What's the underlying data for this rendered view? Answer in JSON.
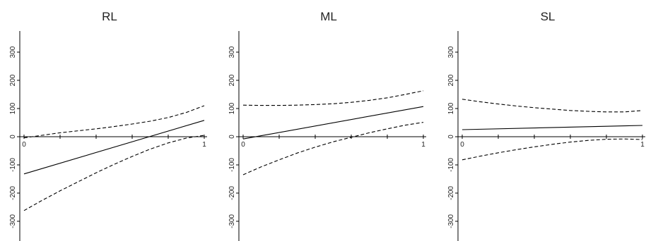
{
  "chart_data": [
    {
      "type": "line",
      "title": "RL",
      "xlim": [
        0,
        1
      ],
      "ylim": [
        -350,
        350
      ],
      "x_ticks": [
        0,
        0.2,
        0.4,
        0.6,
        0.8,
        1
      ],
      "x_tick_labels": [
        "0",
        "",
        "",
        "",
        "",
        "1"
      ],
      "y_ticks": [
        300,
        200,
        100,
        0,
        -100,
        -200,
        -300
      ],
      "y_tick_labels": [
        "300",
        "200",
        "100",
        "0",
        "-100",
        "-200",
        "-300"
      ],
      "grid": false,
      "series": [
        {
          "style": "solid",
          "x": [
            0,
            1
          ],
          "y": [
            -132,
            58
          ]
        },
        {
          "style": "dashed",
          "x": [
            0,
            0.1,
            0.2,
            0.3,
            0.4,
            0.5,
            0.6,
            0.7,
            0.8,
            0.9,
            1.0
          ],
          "y": [
            -4,
            5,
            14,
            21,
            28,
            36,
            45,
            55,
            68,
            86,
            110
          ]
        },
        {
          "style": "dashed",
          "x": [
            0,
            0.1,
            0.2,
            0.3,
            0.4,
            0.5,
            0.6,
            0.7,
            0.8,
            0.9,
            1.0
          ],
          "y": [
            -262,
            -226,
            -192,
            -160,
            -128,
            -98,
            -70,
            -44,
            -22,
            -5,
            5
          ]
        }
      ]
    },
    {
      "type": "line",
      "title": "ML",
      "xlim": [
        0,
        1
      ],
      "ylim": [
        -350,
        350
      ],
      "x_ticks": [
        0,
        0.2,
        0.4,
        0.6,
        0.8,
        1
      ],
      "x_tick_labels": [
        "0",
        "",
        "",
        "",
        "",
        "1"
      ],
      "y_ticks": [
        300,
        200,
        100,
        0,
        -100,
        -200,
        -300
      ],
      "y_tick_labels": [
        "300",
        "200",
        "100",
        "0",
        "-100",
        "-200",
        "-300"
      ],
      "grid": false,
      "series": [
        {
          "style": "solid",
          "x": [
            0,
            1
          ],
          "y": [
            -8,
            107
          ]
        },
        {
          "style": "dashed",
          "x": [
            0,
            0.1,
            0.2,
            0.3,
            0.4,
            0.5,
            0.6,
            0.7,
            0.8,
            0.9,
            1.0
          ],
          "y": [
            112,
            111,
            111,
            112,
            114,
            117,
            122,
            129,
            138,
            150,
            163
          ]
        },
        {
          "style": "dashed",
          "x": [
            0,
            0.1,
            0.2,
            0.3,
            0.4,
            0.5,
            0.6,
            0.7,
            0.8,
            0.9,
            1.0
          ],
          "y": [
            -135,
            -107,
            -82,
            -58,
            -37,
            -18,
            -2,
            14,
            28,
            41,
            51
          ]
        }
      ]
    },
    {
      "type": "line",
      "title": "SL",
      "xlim": [
        0,
        1
      ],
      "ylim": [
        -350,
        350
      ],
      "x_ticks": [
        0,
        0.2,
        0.4,
        0.6,
        0.8,
        1
      ],
      "x_tick_labels": [
        "0",
        "",
        "",
        "",
        "",
        "1"
      ],
      "y_ticks": [
        300,
        200,
        100,
        0,
        -100,
        -200,
        -300
      ],
      "y_tick_labels": [
        "300",
        "200",
        "100",
        "0",
        "-100",
        "-200",
        "-300"
      ],
      "grid": false,
      "series": [
        {
          "style": "solid",
          "x": [
            0,
            1
          ],
          "y": [
            25,
            40
          ]
        },
        {
          "style": "dashed",
          "x": [
            0,
            0.1,
            0.2,
            0.3,
            0.4,
            0.5,
            0.6,
            0.7,
            0.8,
            0.9,
            1.0
          ],
          "y": [
            133,
            124,
            116,
            109,
            103,
            98,
            93,
            90,
            88,
            88,
            93
          ]
        },
        {
          "style": "dashed",
          "x": [
            0,
            0.1,
            0.2,
            0.3,
            0.4,
            0.5,
            0.6,
            0.7,
            0.8,
            0.9,
            1.0
          ],
          "y": [
            -82,
            -69,
            -57,
            -46,
            -36,
            -27,
            -19,
            -13,
            -9,
            -8,
            -10
          ]
        }
      ]
    }
  ]
}
